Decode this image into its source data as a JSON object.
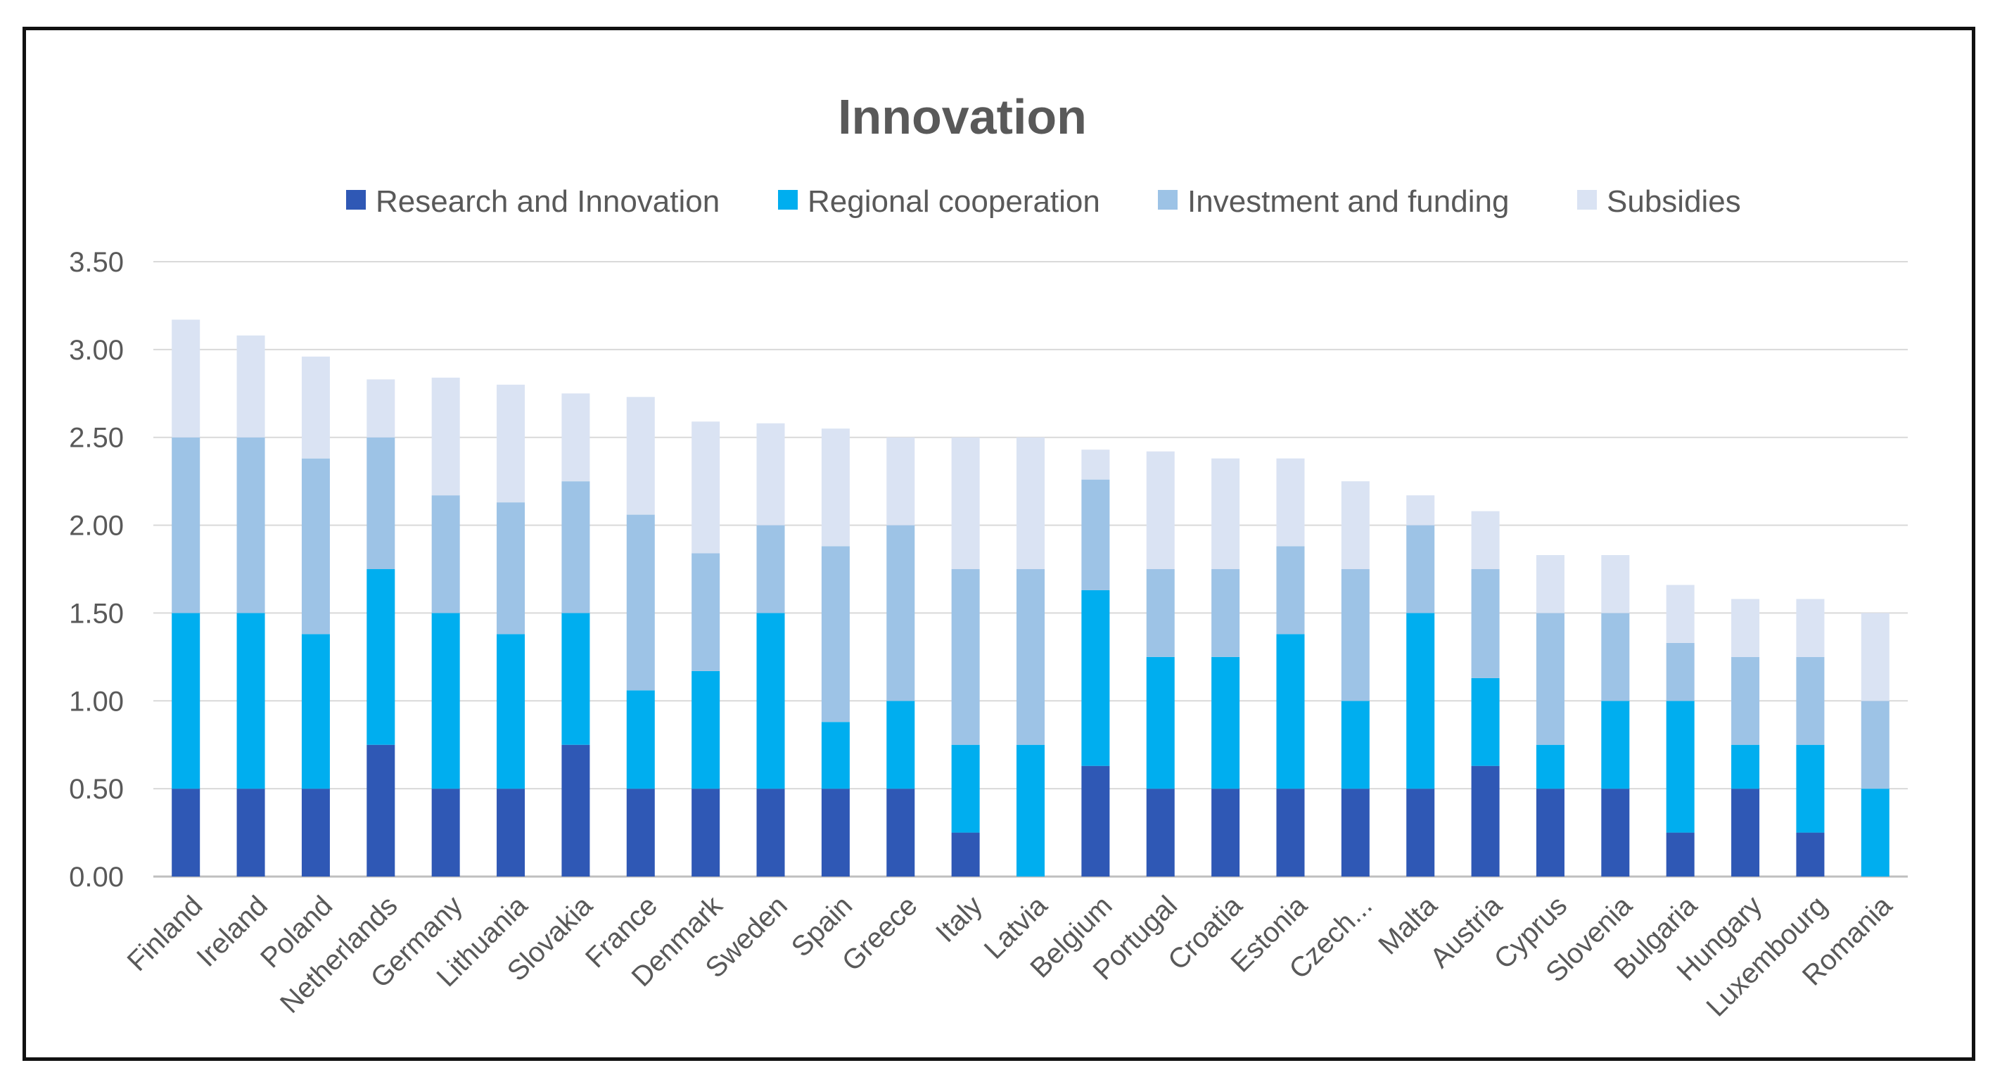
{
  "chart_data": {
    "type": "bar",
    "stacked": true,
    "title": "Innovation",
    "xlabel": "",
    "ylabel": "",
    "ylim": [
      0,
      3.5
    ],
    "yticks": [
      "0.00",
      "0.50",
      "1.00",
      "1.50",
      "2.00",
      "2.50",
      "3.00",
      "3.50"
    ],
    "grid": true,
    "legend_position": "top",
    "categories": [
      "Finland",
      "Ireland",
      "Poland",
      "Netherlands",
      "Germany",
      "Lithuania",
      "Slovakia",
      "France",
      "Denmark",
      "Sweden",
      "Spain",
      "Greece",
      "Italy",
      "Latvia",
      "Belgium",
      "Portugal",
      "Croatia",
      "Estonia",
      "Czech...",
      "Malta",
      "Austria",
      "Cyprus",
      "Slovenia",
      "Bulgaria",
      "Hungary",
      "Luxembourg",
      "Romania"
    ],
    "series": [
      {
        "name": "Research and Innovation",
        "color": "#2F58B5",
        "values": [
          0.5,
          0.5,
          0.5,
          0.75,
          0.5,
          0.5,
          0.75,
          0.5,
          0.5,
          0.5,
          0.5,
          0.5,
          0.25,
          0,
          0.63,
          0.5,
          0.5,
          0.5,
          0.5,
          0.5,
          0.63,
          0.5,
          0.5,
          0.25,
          0.5,
          0.25,
          0
        ]
      },
      {
        "name": "Regional cooperation",
        "color": "#00AEEF",
        "values": [
          1.0,
          1.0,
          0.88,
          1.0,
          1.0,
          0.88,
          0.75,
          0.56,
          0.67,
          1.0,
          0.38,
          0.5,
          0.5,
          0.75,
          1.0,
          0.75,
          0.75,
          0.88,
          0.5,
          1.0,
          0.5,
          0.25,
          0.5,
          0.75,
          0.25,
          0.5,
          0.5
        ]
      },
      {
        "name": "Investment and funding",
        "color": "#9DC3E6",
        "values": [
          1.0,
          1.0,
          1.0,
          0.75,
          0.67,
          0.75,
          0.75,
          1.0,
          0.67,
          0.5,
          1.0,
          1.0,
          1.0,
          1.0,
          0.63,
          0.5,
          0.5,
          0.5,
          0.75,
          0.5,
          0.62,
          0.75,
          0.5,
          0.33,
          0.5,
          0.5,
          0.5
        ]
      },
      {
        "name": "Subsidies",
        "color": "#DAE3F3",
        "values": [
          0.67,
          0.58,
          0.58,
          0.33,
          0.67,
          0.67,
          0.5,
          0.67,
          0.75,
          0.58,
          0.67,
          0.5,
          0.75,
          0.75,
          0.17,
          0.67,
          0.63,
          0.5,
          0.5,
          0.17,
          0.33,
          0.33,
          0.33,
          0.33,
          0.33,
          0.33,
          0.5
        ]
      }
    ]
  }
}
